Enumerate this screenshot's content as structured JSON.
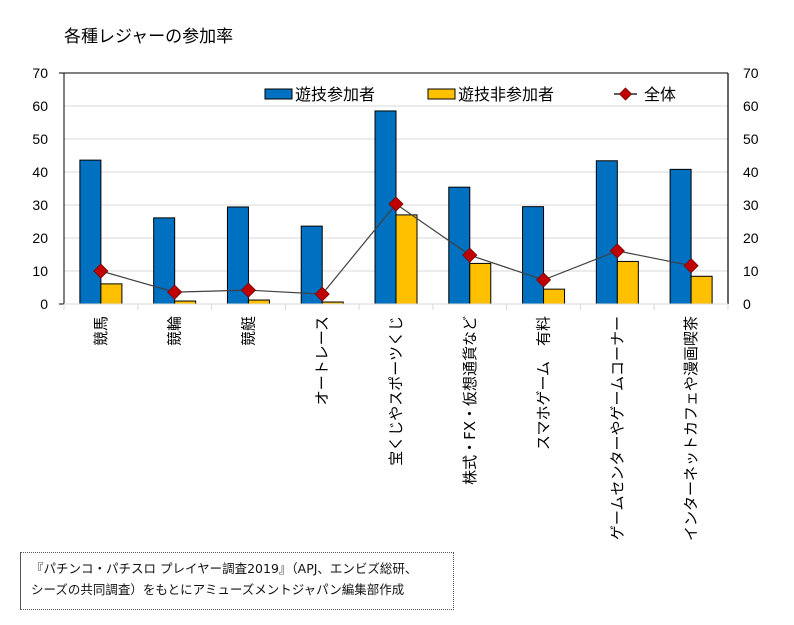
{
  "chart_data": {
    "type": "bar",
    "title": "各種レジャーの参加率",
    "xlabel": "",
    "ylabel": "",
    "ylim": [
      0,
      70
    ],
    "yticks": [
      0,
      10,
      20,
      30,
      40,
      50,
      60,
      70
    ],
    "secondary_ylim": [
      0,
      70
    ],
    "grid": true,
    "legend_position": "top-right",
    "categories": [
      "競馬",
      "競輪",
      "競艇",
      "オートレース",
      "宝くじやスポーツくじ",
      "株式・FX・仮想通貨など",
      "スマホゲーム　有料",
      "ゲームセンターやゲームコーナー",
      "インターネットカフェや漫画喫茶"
    ],
    "series": [
      {
        "name": "遊技参加者",
        "kind": "bar",
        "color": "#0070C0",
        "values": [
          43.6,
          26.1,
          29.4,
          23.6,
          58.5,
          35.4,
          29.5,
          43.4,
          40.8
        ]
      },
      {
        "name": "遊技非参加者",
        "kind": "bar",
        "color": "#FFC000",
        "values": [
          6.1,
          0.9,
          1.2,
          0.6,
          27.0,
          12.3,
          4.5,
          12.9,
          8.4
        ]
      },
      {
        "name": "全体",
        "kind": "line",
        "color": "#C00000",
        "line_color": "#404040",
        "marker": "diamond",
        "values": [
          10.0,
          3.6,
          4.2,
          3.0,
          30.3,
          14.8,
          7.3,
          16.1,
          11.6
        ]
      }
    ]
  },
  "source_note": {
    "line1": "『パチンコ・パチスロ プレイヤー調査2019』（APJ、エンビズ総研、",
    "line2": "シーズの共同調査）をもとにアミューズメントジャパン編集部作成"
  }
}
